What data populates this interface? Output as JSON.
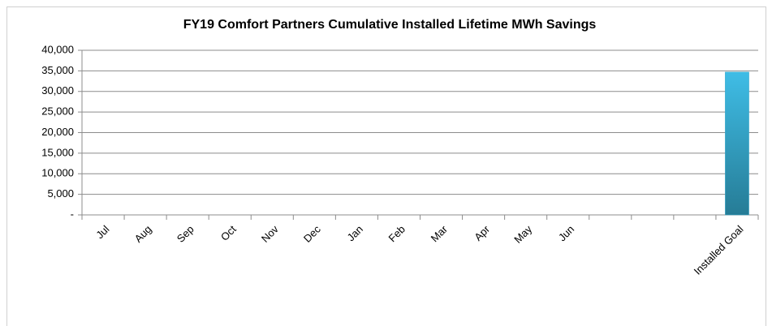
{
  "chart_data": {
    "type": "bar",
    "title": "FY19 Comfort Partners Cumulative Installed Lifetime MWh Savings",
    "categories": [
      "Jul",
      "Aug",
      "Sep",
      "Oct",
      "Nov",
      "Dec",
      "Jan",
      "Feb",
      "Mar",
      "Apr",
      "May",
      "Jun",
      null,
      null,
      null,
      "Installed Goal"
    ],
    "values": [
      null,
      null,
      null,
      null,
      null,
      null,
      null,
      null,
      null,
      null,
      null,
      null,
      null,
      null,
      null,
      34700
    ],
    "color": "#31a5c9",
    "ylim": [
      0,
      40000
    ],
    "yticks": [
      {
        "value": 0,
        "label": "-"
      },
      {
        "value": 5000,
        "label": "5,000"
      },
      {
        "value": 10000,
        "label": "10,000"
      },
      {
        "value": 15000,
        "label": "15,000"
      },
      {
        "value": 20000,
        "label": "20,000"
      },
      {
        "value": 25000,
        "label": "25,000"
      },
      {
        "value": 30000,
        "label": "30,000"
      },
      {
        "value": 35000,
        "label": "35,000"
      },
      {
        "value": 40000,
        "label": "40,000"
      }
    ],
    "grid": true
  }
}
